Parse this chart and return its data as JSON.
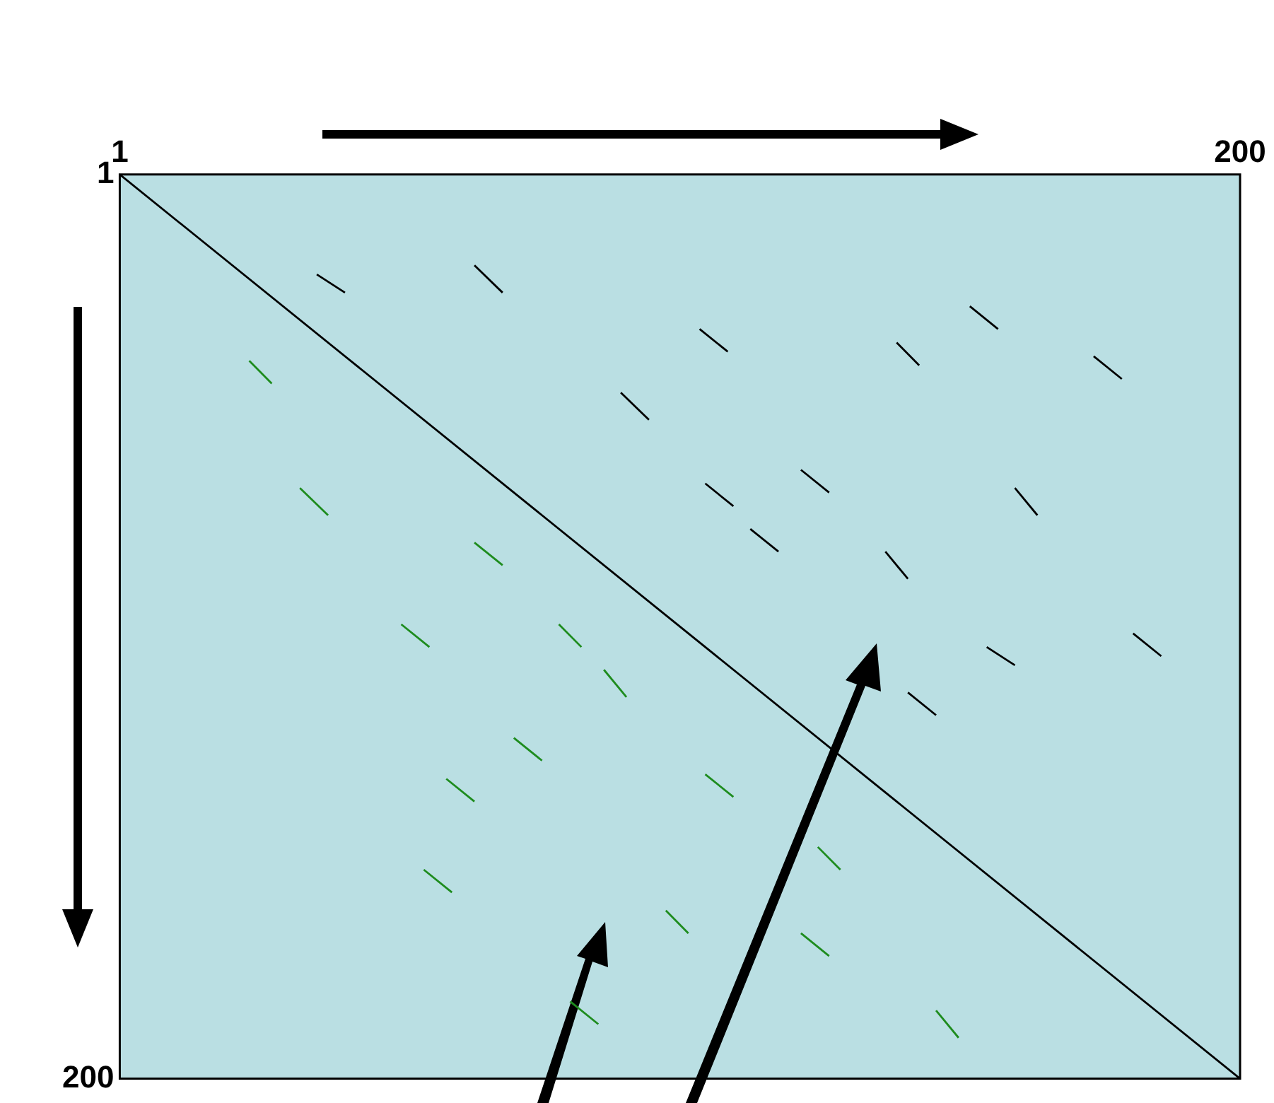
{
  "chart_data": {
    "type": "line",
    "xlim": [
      1,
      200
    ],
    "xticks": [
      1,
      200
    ],
    "ylim": [
      200,
      1
    ],
    "yticks": [
      1,
      200
    ],
    "series": [
      {
        "color": "#000000",
        "x": [
          1,
          200
        ],
        "values": [
          1,
          200
        ]
      },
      {
        "color": "#000000",
        "x": [
          36,
          41
        ],
        "values": [
          23,
          27
        ]
      },
      {
        "color": "#000000",
        "x": [
          64,
          69
        ],
        "values": [
          21,
          27
        ]
      },
      {
        "color": "#000000",
        "x": [
          104,
          109
        ],
        "values": [
          35,
          40
        ]
      },
      {
        "color": "#000000",
        "x": [
          139,
          143
        ],
        "values": [
          38,
          43
        ]
      },
      {
        "color": "#000000",
        "x": [
          152,
          157
        ],
        "values": [
          30,
          35
        ]
      },
      {
        "color": "#000000",
        "x": [
          174,
          179
        ],
        "values": [
          41,
          46
        ]
      },
      {
        "color": "#000000",
        "x": [
          90,
          95
        ],
        "values": [
          49,
          55
        ]
      },
      {
        "color": "#000000",
        "x": [
          105,
          110
        ],
        "values": [
          69,
          74
        ]
      },
      {
        "color": "#000000",
        "x": [
          122,
          127
        ],
        "values": [
          66,
          71
        ]
      },
      {
        "color": "#000000",
        "x": [
          113,
          118
        ],
        "values": [
          79,
          84
        ]
      },
      {
        "color": "#000000",
        "x": [
          160,
          164
        ],
        "values": [
          70,
          76
        ]
      },
      {
        "color": "#000000",
        "x": [
          137,
          141
        ],
        "values": [
          84,
          90
        ]
      },
      {
        "color": "#000000",
        "x": [
          155,
          160
        ],
        "values": [
          105,
          109
        ]
      },
      {
        "color": "#000000",
        "x": [
          181,
          186
        ],
        "values": [
          102,
          107
        ]
      },
      {
        "color": "#000000",
        "x": [
          141,
          146
        ],
        "values": [
          115,
          120
        ]
      },
      {
        "color": "#1e8c1e",
        "x": [
          24,
          28
        ],
        "values": [
          42,
          47
        ]
      },
      {
        "color": "#1e8c1e",
        "x": [
          33,
          38
        ],
        "values": [
          70,
          76
        ]
      },
      {
        "color": "#1e8c1e",
        "x": [
          64,
          69
        ],
        "values": [
          82,
          87
        ]
      },
      {
        "color": "#1e8c1e",
        "x": [
          51,
          56
        ],
        "values": [
          100,
          105
        ]
      },
      {
        "color": "#1e8c1e",
        "x": [
          79,
          83
        ],
        "values": [
          100,
          105
        ]
      },
      {
        "color": "#1e8c1e",
        "x": [
          87,
          91
        ],
        "values": [
          110,
          116
        ]
      },
      {
        "color": "#1e8c1e",
        "x": [
          71,
          76
        ],
        "values": [
          125,
          130
        ]
      },
      {
        "color": "#1e8c1e",
        "x": [
          59,
          64
        ],
        "values": [
          134,
          139
        ]
      },
      {
        "color": "#1e8c1e",
        "x": [
          105,
          110
        ],
        "values": [
          133,
          138
        ]
      },
      {
        "color": "#1e8c1e",
        "x": [
          125,
          129
        ],
        "values": [
          149,
          154
        ]
      },
      {
        "color": "#1e8c1e",
        "x": [
          55,
          60
        ],
        "values": [
          154,
          159
        ]
      },
      {
        "color": "#1e8c1e",
        "x": [
          98,
          102
        ],
        "values": [
          163,
          168
        ]
      },
      {
        "color": "#1e8c1e",
        "x": [
          122,
          127
        ],
        "values": [
          168,
          173
        ]
      },
      {
        "color": "#1e8c1e",
        "x": [
          81,
          86
        ],
        "values": [
          183,
          188
        ]
      },
      {
        "color": "#1e8c1e",
        "x": [
          146,
          150
        ],
        "values": [
          185,
          191
        ]
      }
    ]
  }
}
